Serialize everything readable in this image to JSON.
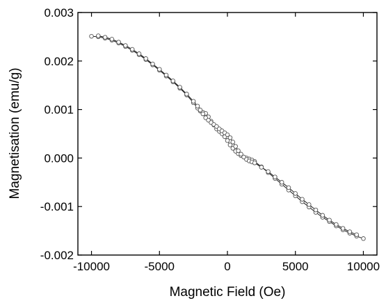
{
  "chart_data": {
    "type": "line",
    "xlabel": "Magnetic Field (Oe)",
    "ylabel": "Magnetisation (emu/g)",
    "xlim": [
      -11000,
      11000
    ],
    "ylim": [
      -0.002,
      0.003
    ],
    "x_ticks": [
      -10000,
      -5000,
      0,
      5000,
      10000
    ],
    "x_tick_labels": [
      "-10000",
      "-5000",
      "0",
      "5000",
      "10000"
    ],
    "y_ticks": [
      -0.002,
      -0.001,
      0.0,
      0.001,
      0.002,
      0.003
    ],
    "y_tick_labels": [
      "-0.002",
      "-0.001",
      "0.000",
      "0.001",
      "0.002",
      "0.003"
    ],
    "grid": false,
    "legend": "none",
    "colors": {
      "line": "#1a1a1a",
      "marker_edge": "#555555",
      "marker_fill": "#ffffff"
    },
    "series": [
      {
        "x": [
          -10000,
          -9500,
          -9000,
          -8500,
          -8000,
          -7500,
          -7000,
          -6500,
          -6000,
          -5500,
          -5000,
          -4500,
          -4000,
          -3500,
          -3000,
          -2500,
          -2200,
          -2000,
          -1800,
          -1600,
          -1400,
          -1200,
          -1000,
          -800,
          -600,
          -400,
          -200,
          0,
          200,
          400,
          600,
          800,
          1000,
          1200,
          1400,
          1600,
          1800,
          2000,
          2500,
          3000,
          3500,
          4000,
          4500,
          5000,
          5500,
          6000,
          6500,
          7000,
          7500,
          8000,
          8500,
          9000,
          9500,
          10000
        ],
        "y": [
          0.00251,
          0.0025,
          0.00247,
          0.00243,
          0.00237,
          0.0023,
          0.00222,
          0.00213,
          0.00203,
          0.00192,
          0.00181,
          0.00169,
          0.00157,
          0.00144,
          0.0013,
          0.00114,
          0.00103,
          0.00097,
          0.00094,
          0.00092,
          0.00085,
          0.00076,
          0.00068,
          0.0006,
          0.00055,
          0.0005,
          0.00044,
          0.00036,
          0.00027,
          0.0002,
          0.00014,
          9e-05,
          5e-05,
          2e-05,
          0.0,
          -2e-05,
          -4e-05,
          -7e-05,
          -0.00018,
          -0.0003,
          -0.00042,
          -0.00054,
          -0.00066,
          -0.00078,
          -0.0009,
          -0.00101,
          -0.00112,
          -0.00122,
          -0.00131,
          -0.0014,
          -0.00148,
          -0.00155,
          -0.00161,
          -0.00166
        ]
      },
      {
        "x": [
          -9500,
          -9000,
          -8500,
          -8000,
          -7500,
          -7000,
          -6500,
          -6000,
          -5500,
          -5000,
          -4500,
          -4000,
          -3500,
          -3000,
          -2500,
          -2200,
          -2000,
          -1800,
          -1600,
          -1400,
          -1200,
          -1000,
          -800,
          -600,
          -400,
          -200,
          0,
          200,
          400,
          600,
          800,
          1000,
          1200,
          1400,
          1600,
          1800,
          2000,
          2500,
          3000,
          3500,
          4000,
          4500,
          5000,
          5500,
          6000,
          6500,
          7000,
          7500,
          8000,
          8500,
          9000,
          9500
        ],
        "y": [
          0.00252,
          0.00249,
          0.00245,
          0.00239,
          0.00232,
          0.00224,
          0.00215,
          0.00205,
          0.00194,
          0.00183,
          0.00171,
          0.00159,
          0.00146,
          0.00132,
          0.00117,
          0.00107,
          0.00099,
          0.00091,
          0.00083,
          0.00078,
          0.00073,
          0.00069,
          0.00065,
          0.0006,
          0.00056,
          0.00052,
          0.00048,
          0.00042,
          0.00033,
          0.00024,
          0.00015,
          8e-05,
          2e-05,
          -3e-05,
          -6e-05,
          -8e-05,
          -0.0001,
          -0.00019,
          -0.00028,
          -0.00039,
          -0.0005,
          -0.00061,
          -0.00073,
          -0.00085,
          -0.00096,
          -0.00107,
          -0.00118,
          -0.00128,
          -0.00137,
          -0.00145,
          -0.00152,
          -0.00158
        ]
      }
    ]
  }
}
